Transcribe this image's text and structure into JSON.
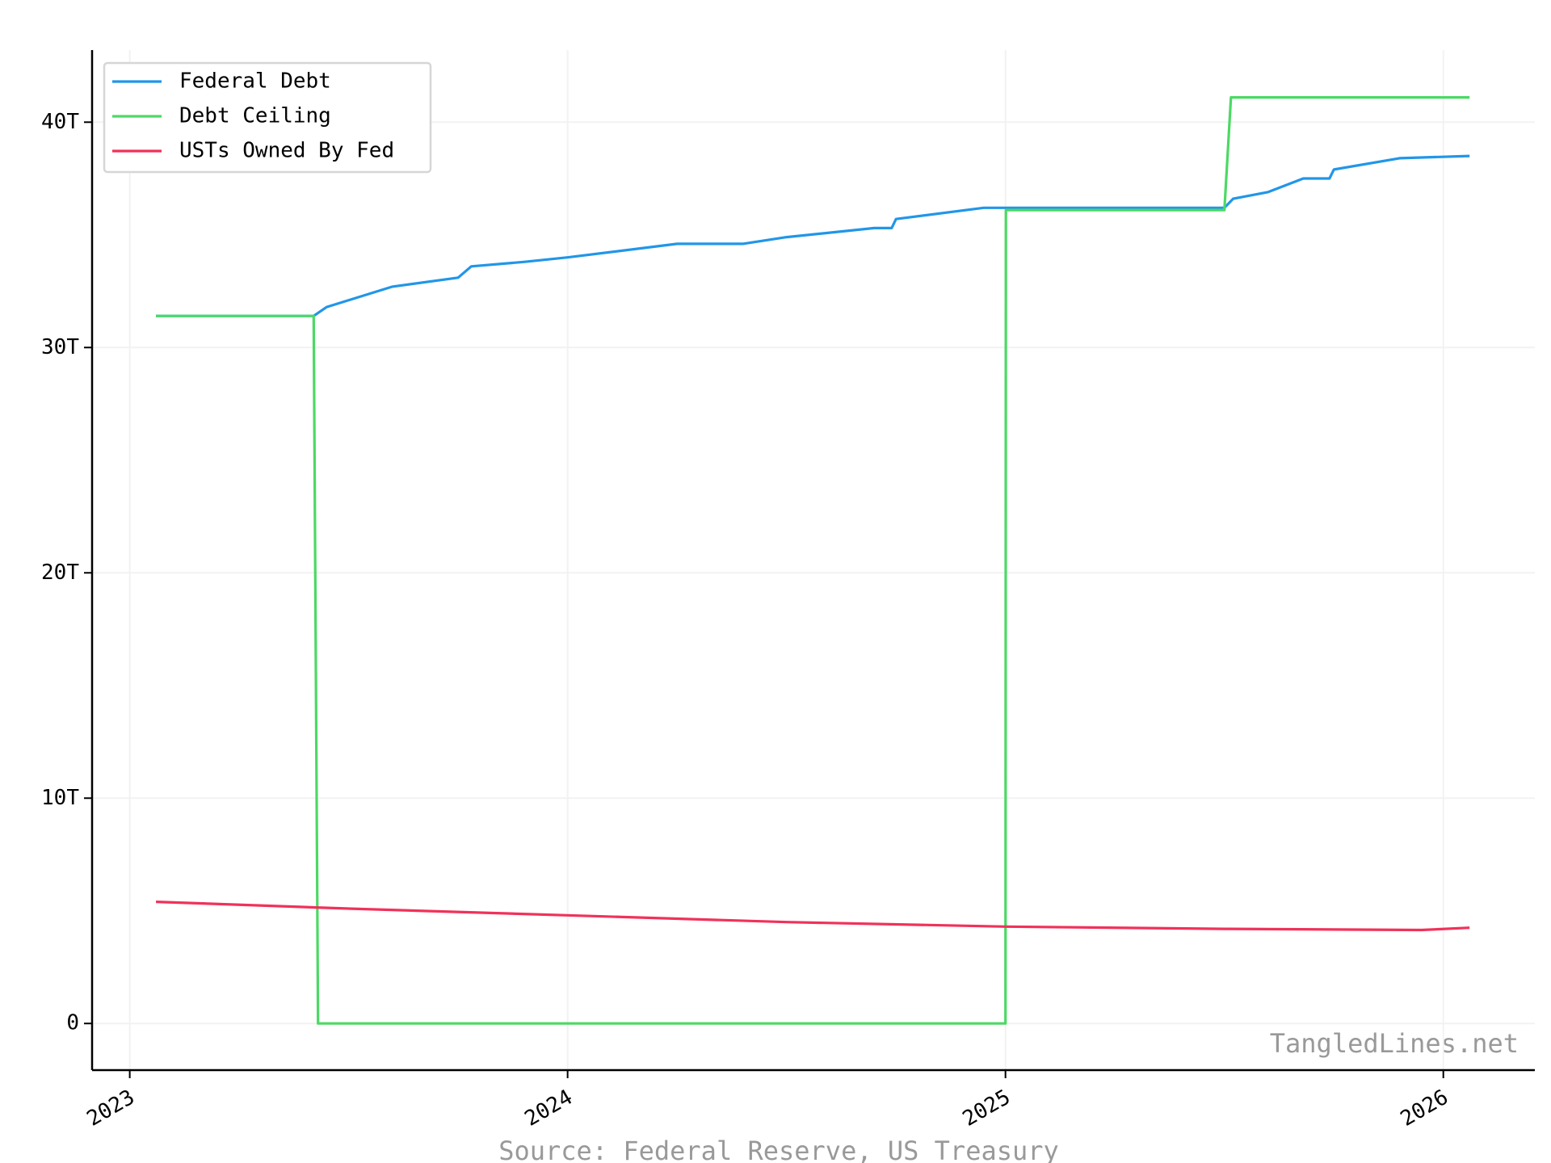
{
  "chart_data": {
    "type": "line",
    "source": "Source: Federal Reserve, US Treasury",
    "watermark": "TangledLines.net",
    "xlim": [
      2022.914,
      2026.209
    ],
    "xticks": [
      2023,
      2024,
      2025,
      2026
    ],
    "ylim": [
      -2.07,
      43.2
    ],
    "yticks": [
      {
        "value": 0,
        "label": "0"
      },
      {
        "value": 10,
        "label": "10T"
      },
      {
        "value": 20,
        "label": "20T"
      },
      {
        "value": 30,
        "label": "30T"
      },
      {
        "value": 40,
        "label": "40T"
      }
    ],
    "grid": true,
    "legend": "upper left",
    "series": [
      {
        "name": "Federal Debt",
        "color": "#2196e8",
        "x": [
          2023.06,
          2023.42,
          2023.45,
          2023.6,
          2023.75,
          2023.78,
          2023.9,
          2024.0,
          2024.25,
          2024.4,
          2024.5,
          2024.7,
          2024.74,
          2024.75,
          2024.95,
          2025.0,
          2025.5,
          2025.52,
          2025.6,
          2025.68,
          2025.74,
          2025.75,
          2025.9,
          2026.06
        ],
        "values": [
          31.4,
          31.4,
          31.8,
          32.7,
          33.1,
          33.6,
          33.8,
          34.0,
          34.6,
          34.6,
          34.9,
          35.3,
          35.3,
          35.7,
          36.2,
          36.2,
          36.2,
          36.6,
          36.9,
          37.5,
          37.5,
          37.9,
          38.4,
          38.5
        ]
      },
      {
        "name": "Debt Ceiling",
        "color": "#4cd964",
        "x": [
          2023.06,
          2023.42,
          2023.43,
          2025.0,
          2025.001,
          2025.5,
          2025.515,
          2026.06
        ],
        "values": [
          31.4,
          31.4,
          0,
          0,
          36.1,
          36.1,
          41.1,
          41.1
        ]
      },
      {
        "name": "USTs Owned By Fed",
        "color": "#f0325a",
        "x": [
          2023.06,
          2023.5,
          2024.0,
          2024.5,
          2025.0,
          2025.5,
          2025.95,
          2026.06
        ],
        "values": [
          5.4,
          5.1,
          4.8,
          4.5,
          4.3,
          4.2,
          4.15,
          4.25
        ]
      }
    ]
  }
}
